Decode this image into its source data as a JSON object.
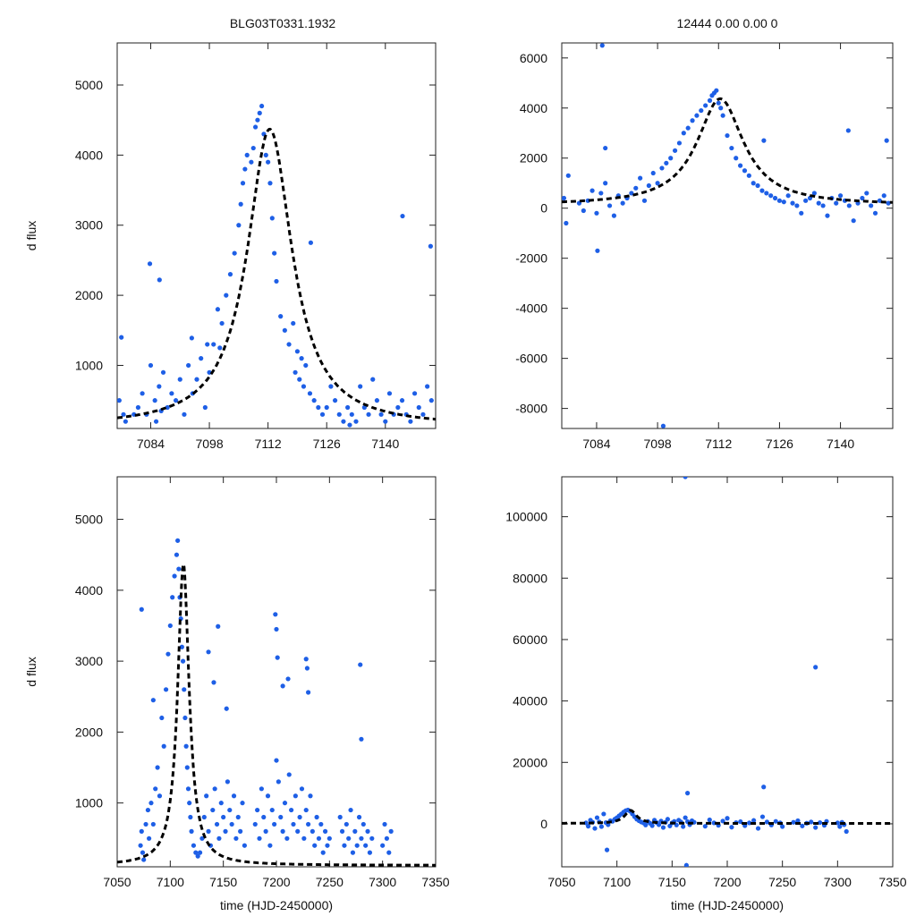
{
  "figure": {
    "title_left": "BLG03T0331.1932",
    "title_right": "12444  0.00  0.00  0"
  },
  "chart_data": [
    {
      "id": "zoom_left",
      "type": "scatter",
      "title": "BLG03T0331.1932",
      "xlabel": "",
      "ylabel": "d flux",
      "xlim": [
        7076,
        7152
      ],
      "ylim": [
        100,
        5600
      ],
      "xticks": [
        7084,
        7098,
        7112,
        7126,
        7140
      ],
      "yticks": [
        1000,
        2000,
        3000,
        4000,
        5000
      ],
      "series": [
        {
          "name": "observations",
          "kind": "points",
          "color": "#1e5fe6",
          "x": [
            7076.5,
            7077,
            7077.5,
            7078,
            7080,
            7081,
            7082,
            7083,
            7084,
            7085,
            7086,
            7086.5,
            7087,
            7088,
            7089,
            7090,
            7091,
            7092,
            7093,
            7094,
            7095,
            7096,
            7097,
            7097.5,
            7098,
            7099,
            7100,
            7101,
            7102,
            7103,
            7104,
            7105,
            7105.5,
            7106,
            7106.5,
            7107,
            7108,
            7108.5,
            7109,
            7109.5,
            7110,
            7110.5,
            7111,
            7111.5,
            7112,
            7112.5,
            7113,
            7113.5,
            7114,
            7115,
            7116,
            7117,
            7118,
            7118.5,
            7119,
            7119.5,
            7120,
            7120.5,
            7121,
            7122,
            7123,
            7124,
            7125,
            7126,
            7127,
            7128,
            7129,
            7130,
            7131,
            7132,
            7133,
            7134,
            7135,
            7136,
            7137,
            7138,
            7139,
            7140,
            7141,
            7142,
            7143,
            7144,
            7145,
            7146,
            7147,
            7148,
            7149,
            7150,
            7151,
            7083.8,
            7086.1,
            7093.8,
            7085.3,
            7100.5,
            7122.2,
            7144.1,
            7150.8,
            7131.5
          ],
          "y": [
            500,
            1400,
            300,
            200,
            300,
            400,
            600,
            300,
            1000,
            500,
            700,
            350,
            900,
            400,
            600,
            500,
            800,
            300,
            1000,
            600,
            800,
            1100,
            400,
            1300,
            900,
            1300,
            1800,
            1600,
            2000,
            2300,
            2600,
            3000,
            3300,
            3600,
            3800,
            4000,
            3900,
            4100,
            4400,
            4500,
            4600,
            4700,
            4300,
            4000,
            3900,
            3600,
            3100,
            2600,
            2200,
            1700,
            1500,
            1300,
            1600,
            900,
            1200,
            800,
            1100,
            700,
            1000,
            600,
            500,
            400,
            300,
            400,
            700,
            500,
            300,
            200,
            400,
            300,
            200,
            700,
            400,
            300,
            800,
            500,
            300,
            200,
            600,
            300,
            400,
            500,
            300,
            200,
            600,
            400,
            300,
            700,
            500,
            2450,
            2220,
            1390,
            200,
            1250,
            2750,
            3130,
            2700,
            150
          ]
        },
        {
          "name": "model",
          "kind": "curve",
          "color": "#000000",
          "t0": 7112.4,
          "amplitude": 4250,
          "baseline": 120,
          "tE": 6.5
        }
      ]
    },
    {
      "id": "zoom_right",
      "type": "scatter",
      "title": "12444  0.00  0.00  0",
      "xlabel": "",
      "ylabel": "",
      "xlim": [
        7076,
        7152
      ],
      "ylim": [
        -8800,
        6600
      ],
      "xticks": [
        7084,
        7098,
        7112,
        7126,
        7140
      ],
      "yticks": [
        -8000,
        -6000,
        -4000,
        -2000,
        0,
        2000,
        4000,
        6000
      ],
      "series": [
        {
          "name": "observations",
          "kind": "points",
          "color": "#1e5fe6",
          "x": [
            7076.5,
            7077,
            7077.5,
            7080,
            7081,
            7082,
            7083,
            7084,
            7085,
            7086,
            7087,
            7088,
            7089,
            7090,
            7091,
            7092,
            7093,
            7094,
            7095,
            7096,
            7097,
            7098,
            7099,
            7100,
            7101,
            7102,
            7103,
            7104,
            7105,
            7106,
            7107,
            7108,
            7109,
            7110,
            7110.5,
            7111,
            7111.5,
            7112,
            7112.5,
            7113,
            7114,
            7115,
            7116,
            7117,
            7118,
            7119,
            7120,
            7121,
            7122,
            7123,
            7124,
            7125,
            7126,
            7127,
            7128,
            7129,
            7130,
            7131,
            7132,
            7133,
            7134,
            7135,
            7136,
            7137,
            7138,
            7139,
            7140,
            7141,
            7142,
            7143,
            7144,
            7145,
            7146,
            7147,
            7148,
            7149,
            7150,
            7151,
            7085.3,
            7099.3,
            7084.2,
            7141.8,
            7150.6,
            7122.4,
            7086.0
          ],
          "y": [
            400,
            -600,
            1300,
            200,
            -100,
            300,
            700,
            -200,
            600,
            1000,
            100,
            -300,
            500,
            200,
            400,
            600,
            800,
            1200,
            300,
            900,
            1400,
            1000,
            1600,
            1800,
            2000,
            2300,
            2600,
            3000,
            3200,
            3500,
            3700,
            3900,
            4100,
            4300,
            4500,
            4600,
            4700,
            4200,
            4000,
            3700,
            2900,
            2400,
            2000,
            1700,
            1500,
            1300,
            1000,
            900,
            700,
            600,
            500,
            400,
            300,
            250,
            500,
            200,
            100,
            -200,
            300,
            400,
            600,
            200,
            100,
            -300,
            400,
            200,
            500,
            300,
            100,
            -500,
            200,
            400,
            600,
            100,
            -200,
            300,
            500,
            200,
            6500,
            -8700,
            -1700,
            3100,
            2700,
            2700,
            2400
          ]
        },
        {
          "name": "model",
          "kind": "curve",
          "color": "#000000",
          "t0": 7112.4,
          "amplitude": 4250,
          "baseline": 120,
          "tE": 6.5
        }
      ]
    },
    {
      "id": "full_left",
      "type": "scatter",
      "title": "",
      "xlabel": "time (HJD-2450000)",
      "ylabel": "d flux",
      "xlim": [
        7050,
        7350
      ],
      "ylim": [
        100,
        5600
      ],
      "xticks": [
        7050,
        7100,
        7150,
        7200,
        7250,
        7300,
        7350
      ],
      "yticks": [
        1000,
        2000,
        3000,
        4000,
        5000
      ],
      "series": [
        {
          "name": "observations",
          "kind": "points",
          "color": "#1e5fe6",
          "x": [
            7072,
            7073,
            7074,
            7075,
            7077,
            7079,
            7080,
            7082,
            7084,
            7086,
            7088,
            7090,
            7092,
            7094,
            7096,
            7098,
            7100,
            7102,
            7104,
            7106,
            7107,
            7108,
            7109,
            7110,
            7111,
            7112,
            7113,
            7114,
            7115,
            7116,
            7117,
            7118,
            7119,
            7120,
            7122,
            7124,
            7126,
            7128,
            7130,
            7132,
            7134,
            7136,
            7138,
            7140,
            7142,
            7144,
            7146,
            7148,
            7150,
            7152,
            7154,
            7156,
            7158,
            7160,
            7162,
            7164,
            7166,
            7168,
            7170,
            7180,
            7182,
            7184,
            7186,
            7188,
            7190,
            7192,
            7194,
            7196,
            7198,
            7200,
            7202,
            7204,
            7206,
            7208,
            7210,
            7212,
            7214,
            7216,
            7218,
            7220,
            7222,
            7224,
            7226,
            7228,
            7230,
            7232,
            7234,
            7236,
            7238,
            7240,
            7242,
            7244,
            7246,
            7248,
            7250,
            7260,
            7262,
            7264,
            7266,
            7268,
            7270,
            7272,
            7274,
            7276,
            7278,
            7280,
            7282,
            7284,
            7286,
            7288,
            7290,
            7300,
            7302,
            7304,
            7306,
            7308,
            7073,
            7084,
            7136,
            7141,
            7145,
            7153,
            7199,
            7200,
            7201,
            7228,
            7229,
            7230,
            7279,
            7280,
            7206,
            7211
          ],
          "y": [
            400,
            600,
            300,
            200,
            700,
            900,
            500,
            1000,
            700,
            1200,
            1500,
            1100,
            2200,
            1800,
            2600,
            3100,
            3500,
            3900,
            4200,
            4500,
            4700,
            4300,
            3900,
            3600,
            3200,
            3000,
            2600,
            2200,
            1800,
            1500,
            1200,
            1000,
            800,
            600,
            400,
            300,
            250,
            300,
            500,
            800,
            1100,
            600,
            400,
            900,
            1200,
            700,
            500,
            1000,
            800,
            600,
            1300,
            900,
            700,
            1100,
            500,
            800,
            600,
            1000,
            400,
            700,
            900,
            500,
            1200,
            800,
            600,
            1100,
            400,
            900,
            700,
            1600,
            1300,
            800,
            600,
            1000,
            500,
            1400,
            900,
            700,
            1100,
            600,
            800,
            1200,
            500,
            900,
            700,
            1100,
            600,
            400,
            800,
            500,
            700,
            300,
            600,
            400,
            500,
            800,
            600,
            400,
            700,
            500,
            900,
            300,
            600,
            400,
            800,
            500,
            700,
            400,
            600,
            300,
            500,
            400,
            700,
            500,
            300,
            600,
            3730,
            2450,
            3130,
            2700,
            3490,
            2330,
            3660,
            3450,
            3050,
            3030,
            2900,
            2560,
            2950,
            1900,
            2650,
            2750
          ]
        },
        {
          "name": "model",
          "kind": "curve",
          "color": "#000000",
          "t0": 7112.4,
          "amplitude": 4250,
          "baseline": 120,
          "tE": 6.5
        }
      ]
    },
    {
      "id": "full_right",
      "type": "scatter",
      "title": "",
      "xlabel": "time (HJD-2450000)",
      "ylabel": "",
      "xlim": [
        7050,
        7350
      ],
      "ylim": [
        -14000,
        113000
      ],
      "xticks": [
        7050,
        7100,
        7150,
        7200,
        7250,
        7300,
        7350
      ],
      "yticks": [
        0,
        20000,
        40000,
        60000,
        80000,
        100000
      ],
      "series": [
        {
          "name": "observations",
          "kind": "points",
          "color": "#1e5fe6",
          "x": [
            7072,
            7074,
            7076,
            7078,
            7080,
            7082,
            7084,
            7086,
            7088,
            7090,
            7092,
            7094,
            7096,
            7098,
            7100,
            7102,
            7104,
            7106,
            7108,
            7110,
            7112,
            7114,
            7116,
            7118,
            7120,
            7122,
            7124,
            7126,
            7128,
            7130,
            7132,
            7134,
            7136,
            7138,
            7140,
            7142,
            7144,
            7146,
            7148,
            7150,
            7152,
            7154,
            7156,
            7158,
            7160,
            7162,
            7164,
            7166,
            7168,
            7170,
            7180,
            7184,
            7188,
            7192,
            7196,
            7200,
            7204,
            7208,
            7212,
            7216,
            7220,
            7224,
            7228,
            7232,
            7236,
            7240,
            7244,
            7248,
            7250,
            7260,
            7264,
            7268,
            7272,
            7276,
            7280,
            7284,
            7288,
            7290,
            7300,
            7302,
            7304,
            7306,
            7308,
            7164,
            7280,
            7233,
            7091,
            7162,
            7163
          ],
          "y": [
            300,
            -800,
            1200,
            500,
            -1500,
            2000,
            600,
            -900,
            3200,
            400,
            -300,
            1000,
            800,
            1500,
            2000,
            2600,
            3200,
            3800,
            4300,
            4500,
            4100,
            3200,
            2300,
            1500,
            1000,
            600,
            300,
            -400,
            800,
            200,
            -600,
            1200,
            400,
            -300,
            900,
            -1200,
            500,
            1500,
            -700,
            300,
            800,
            -400,
            1200,
            600,
            -900,
            2000,
            700,
            -300,
            1000,
            500,
            -800,
            1300,
            300,
            -500,
            900,
            1800,
            -1100,
            400,
            700,
            -600,
            300,
            1100,
            -1500,
            2300,
            600,
            -400,
            800,
            300,
            -900,
            500,
            1000,
            -700,
            200,
            600,
            -1200,
            400,
            -500,
            800,
            300,
            -900,
            500,
            -300,
            -2500,
            10000,
            51000,
            12000,
            -8500,
            113000,
            -13500
          ]
        },
        {
          "name": "model",
          "kind": "curve",
          "color": "#000000",
          "t0": 7112.4,
          "amplitude": 4250,
          "baseline": 120,
          "tE": 6.5
        }
      ]
    }
  ]
}
